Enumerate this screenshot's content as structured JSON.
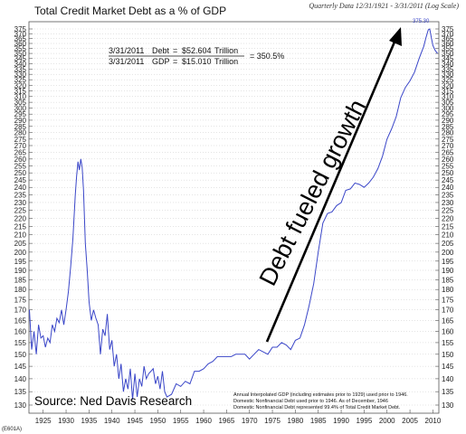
{
  "chart_data": {
    "type": "line",
    "title": "Total Credit Market Debt as a % of GDP",
    "subtitle": "Quarterly Data 12/31/1921 - 3/31/2011 (Log Scale)",
    "calc_lines": [
      {
        "date": "3/31/2011",
        "label": "Debt",
        "eq": "=",
        "value": "$52.604",
        "unit": "Trillion"
      },
      {
        "date": "3/31/2011",
        "label": "GDP",
        "eq": "=",
        "value": "$15.010",
        "unit": "Trillion"
      }
    ],
    "ratio_text": "= 350.5%",
    "annotation": "Debt fueled growth",
    "source": "Source: Ned Davis Research",
    "corner_code": "(E601A)",
    "peak_label": "375.30",
    "notes": [
      "Annual Interpolated GDP (including estimates prior to 1929) used prior to 1946.",
      "Domestic Nonfinancial Debt used prior to 1946. As of December, 1946",
      "Domestic Nonfinancial Debt represented 99.4% of Total Credit Market Debt."
    ],
    "y_scale": "log",
    "ylim": [
      130,
      375
    ],
    "xlim": [
      1921.9,
      2011.3
    ],
    "y_ticks": [
      130,
      135,
      140,
      145,
      150,
      155,
      160,
      165,
      170,
      175,
      180,
      185,
      190,
      195,
      200,
      205,
      210,
      215,
      220,
      225,
      230,
      235,
      240,
      245,
      250,
      255,
      260,
      265,
      270,
      275,
      280,
      285,
      290,
      295,
      300,
      305,
      310,
      315,
      320,
      325,
      330,
      335,
      340,
      345,
      350,
      355,
      360,
      365,
      370,
      375
    ],
    "x_ticks": [
      1925,
      1930,
      1935,
      1940,
      1945,
      1950,
      1955,
      1960,
      1965,
      1970,
      1975,
      1980,
      1985,
      1990,
      1995,
      2000,
      2005,
      2010
    ],
    "grid": true,
    "line_color": "#3a46c8",
    "series": [
      {
        "x": [
          1922.0,
          1922.5,
          1923.0,
          1923.5,
          1924.0,
          1924.5,
          1925.0,
          1925.5,
          1926.0,
          1926.5,
          1927.0,
          1927.5,
          1928.0,
          1928.5,
          1929.0,
          1929.5,
          1930.0,
          1930.5,
          1931.0,
          1931.5,
          1932.0,
          1932.3,
          1932.6,
          1932.9,
          1933.2,
          1933.5,
          1933.8,
          1934.2,
          1934.6,
          1935.0,
          1935.5,
          1936.0,
          1936.5,
          1937.0,
          1937.5,
          1938.0,
          1938.5,
          1939.0,
          1939.5,
          1940.0,
          1940.5,
          1941.0,
          1941.5,
          1942.0,
          1942.5,
          1943.0,
          1943.5,
          1944.0,
          1944.5,
          1945.0,
          1945.5,
          1946.0,
          1946.5,
          1947.0,
          1947.5,
          1948.0,
          1948.5,
          1949.0,
          1949.5,
          1950.0,
          1950.5,
          1951.0,
          1951.5,
          1952.0,
          1953.0,
          1954.0,
          1955.0,
          1956.0,
          1957.0,
          1958.0,
          1959.0,
          1960.0,
          1961.0,
          1962.0,
          1963.0,
          1964.0,
          1965.0,
          1966.0,
          1967.0,
          1968.0,
          1969.0,
          1970.0,
          1971.0,
          1972.0,
          1973.0,
          1974.0,
          1975.0,
          1976.0,
          1977.0,
          1978.0,
          1979.0,
          1980.0,
          1981.0,
          1982.0,
          1983.0,
          1984.0,
          1985.0,
          1986.0,
          1987.0,
          1988.0,
          1989.0,
          1990.0,
          1991.0,
          1992.0,
          1993.0,
          1994.0,
          1995.0,
          1996.0,
          1997.0,
          1998.0,
          1999.0,
          2000.0,
          2001.0,
          2002.0,
          2003.0,
          2004.0,
          2005.0,
          2006.0,
          2007.0,
          2008.0,
          2008.5,
          2009.0,
          2009.3,
          2009.7,
          2010.0,
          2010.5,
          2011.0
        ],
        "y": [
          170,
          152,
          160,
          150,
          163,
          157,
          158,
          153,
          157,
          155,
          163,
          160,
          166,
          164,
          170,
          163,
          170,
          179,
          192,
          208,
          235,
          248,
          258,
          252,
          260,
          254,
          238,
          205,
          190,
          174,
          165,
          170,
          166,
          163,
          150,
          161,
          158,
          168,
          152,
          156,
          145,
          150,
          140,
          146,
          135,
          140,
          136,
          144,
          132,
          142,
          133,
          140,
          137,
          145,
          140,
          142,
          143,
          144,
          138,
          141,
          136,
          143,
          135,
          133,
          134,
          138,
          137,
          139,
          138,
          143,
          143,
          144,
          146,
          147,
          149,
          149,
          149,
          149,
          150,
          150,
          150,
          148,
          150,
          152,
          151,
          150,
          153,
          153,
          155,
          154,
          152,
          156,
          157,
          163,
          172,
          183,
          200,
          217,
          223,
          224,
          228,
          230,
          238,
          239,
          243,
          242,
          240,
          243,
          247,
          253,
          262,
          275,
          283,
          293,
          309,
          318,
          324,
          332,
          345,
          357,
          366,
          374,
          375,
          365,
          358,
          353,
          350
        ]
      }
    ]
  }
}
